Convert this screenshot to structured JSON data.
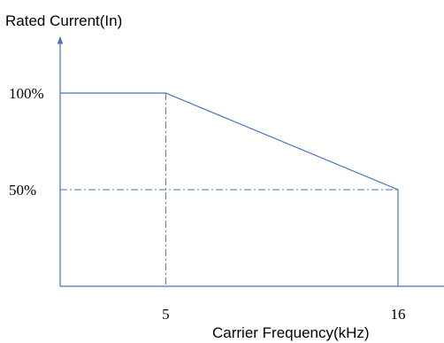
{
  "chart_data": {
    "type": "line",
    "ylabel": "Rated Current(In)",
    "xlabel": "Carrier Frequency(kHz)",
    "x_ticks": [
      {
        "value": 5,
        "label": "5"
      },
      {
        "value": 16,
        "label": "16"
      }
    ],
    "y_ticks": [
      {
        "value": 100,
        "label": "100%"
      },
      {
        "value": 50,
        "label": "50%"
      }
    ],
    "xlim": [
      0,
      21
    ],
    "ylim": [
      0,
      130
    ],
    "series": [
      {
        "x": [
          0,
          5,
          16,
          16
        ],
        "y": [
          100,
          100,
          50,
          0
        ]
      }
    ],
    "reference_lines": [
      {
        "orientation": "vertical",
        "x": 5,
        "y_range": [
          0,
          100
        ],
        "style": "dash-dot"
      },
      {
        "orientation": "horizontal",
        "y": 50,
        "x_range": [
          0,
          16
        ],
        "style": "dash-dot"
      }
    ],
    "colors": {
      "line": "#4472c4",
      "axis": "#4472c4",
      "text": "#000000"
    },
    "grid": false,
    "legend": "none"
  }
}
